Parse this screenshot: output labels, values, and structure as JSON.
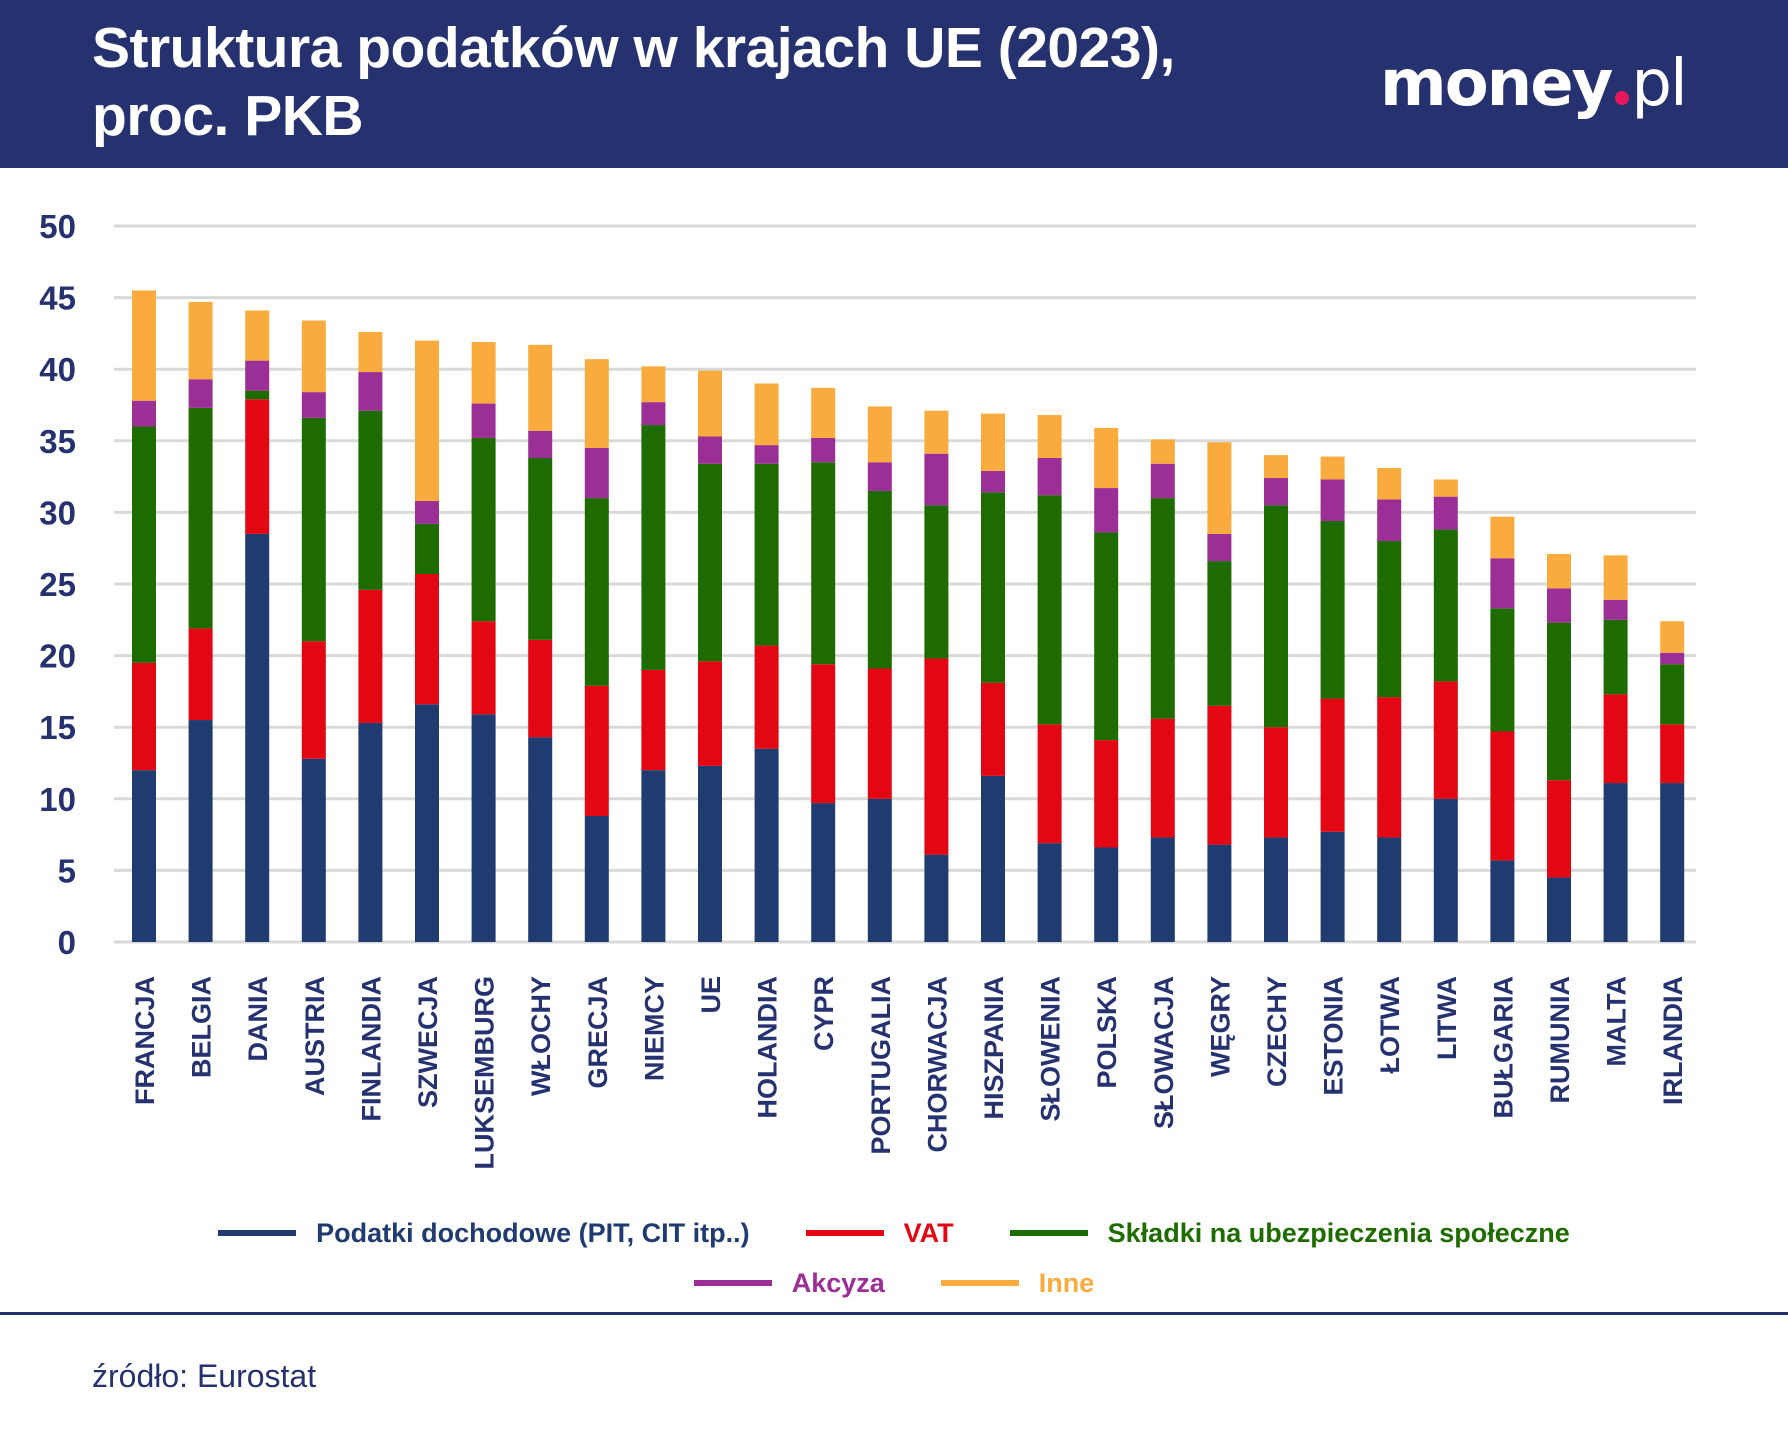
{
  "header": {
    "title_line1": "Struktura podatków w krajach UE (2023),",
    "title_line2": "proc. PKB",
    "logo_main": "money",
    "logo_suffix": "pl",
    "logo_dot_color": "#e8175d"
  },
  "source": "źródło: Eurostat",
  "colors": {
    "header_bg": "#263270",
    "axis_text": "#263270",
    "grid": "#d9d9d9"
  },
  "chart_data": {
    "type": "bar",
    "stacked": true,
    "ylim": [
      0,
      50
    ],
    "yticks": [
      0,
      5,
      10,
      15,
      20,
      25,
      30,
      35,
      40,
      45,
      50
    ],
    "grid": true,
    "legend_position": "bottom",
    "categories": [
      "FRANCJA",
      "BELGIA",
      "DANIA",
      "AUSTRIA",
      "FINLANDIA",
      "SZWECJA",
      "LUKSEMBURG",
      "WŁOCHY",
      "GRECJA",
      "NIEMCY",
      "UE",
      "HOLANDIA",
      "CYPR",
      "PORTUGALIA",
      "CHORWACJA",
      "HISZPANIA",
      "SŁOWENIA",
      "POLSKA",
      "SŁOWACJA",
      "WĘGRY",
      "CZECHY",
      "ESTONIA",
      "ŁOTWA",
      "LITWA",
      "BUŁGARIA",
      "RUMUNIA",
      "MALTA",
      "IRLANDIA"
    ],
    "series": [
      {
        "name": "Podatki dochodowe (PIT, CIT itp..)",
        "color": "#1f3b70",
        "values": [
          12.0,
          15.5,
          28.5,
          12.8,
          15.3,
          16.6,
          15.9,
          14.3,
          8.8,
          12.0,
          12.3,
          13.5,
          9.7,
          10.0,
          6.1,
          11.6,
          6.9,
          6.6,
          7.3,
          6.8,
          7.3,
          7.7,
          7.3,
          10.0,
          5.7,
          4.5,
          11.1,
          11.1
        ]
      },
      {
        "name": "VAT",
        "color": "#e30613",
        "values": [
          7.5,
          6.4,
          9.4,
          8.2,
          9.3,
          9.1,
          6.5,
          6.8,
          9.1,
          7.0,
          7.3,
          7.2,
          9.7,
          9.1,
          13.7,
          6.5,
          8.3,
          7.5,
          8.3,
          9.7,
          7.7,
          9.3,
          9.8,
          8.2,
          9.0,
          6.8,
          6.2,
          4.1
        ]
      },
      {
        "name": "Składki na ubezpieczenia społeczne",
        "color": "#1e6b00",
        "values": [
          16.5,
          15.4,
          0.6,
          15.6,
          12.5,
          3.5,
          12.8,
          12.7,
          13.1,
          17.1,
          13.8,
          12.7,
          14.1,
          12.4,
          10.7,
          13.3,
          16.0,
          14.5,
          15.4,
          10.1,
          15.5,
          12.4,
          10.9,
          10.6,
          8.6,
          11.0,
          5.2,
          4.2
        ]
      },
      {
        "name": "Akcyza",
        "color": "#9b2f96",
        "values": [
          1.8,
          2.0,
          2.1,
          1.8,
          2.7,
          1.6,
          2.4,
          1.9,
          3.5,
          1.6,
          1.9,
          1.3,
          1.7,
          2.0,
          3.6,
          1.5,
          2.6,
          3.1,
          2.4,
          1.9,
          1.9,
          2.9,
          2.9,
          2.3,
          3.5,
          2.4,
          1.4,
          0.8
        ]
      },
      {
        "name": "Inne",
        "color": "#f9ac3d",
        "values": [
          7.7,
          5.4,
          3.5,
          5.0,
          2.8,
          11.2,
          4.3,
          6.0,
          6.2,
          2.5,
          4.6,
          4.3,
          3.5,
          3.9,
          3.0,
          4.0,
          3.0,
          4.2,
          1.7,
          6.4,
          1.6,
          1.6,
          2.2,
          1.2,
          2.9,
          2.4,
          3.1,
          2.2
        ]
      }
    ]
  }
}
